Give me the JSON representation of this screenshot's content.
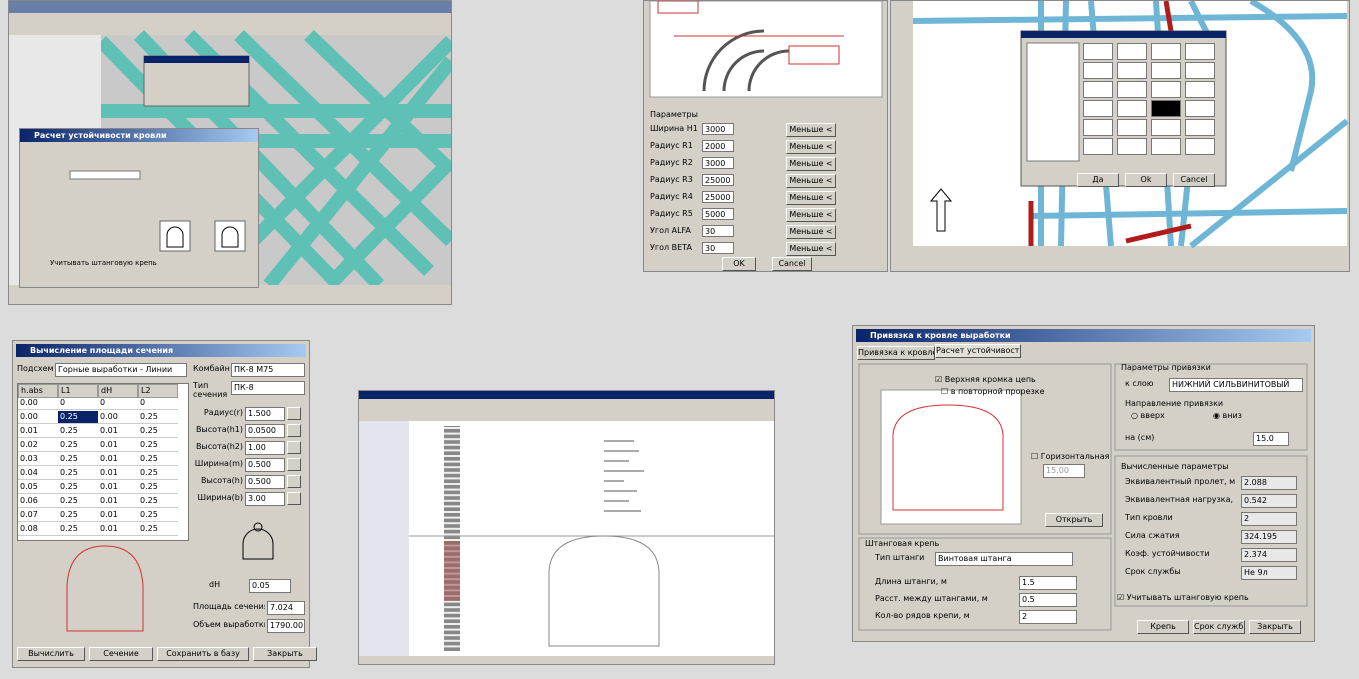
{
  "cad_left": {
    "dialog_title": "Расчет устойчивости кровли",
    "checkbox": "Учитывать штанговую крепь"
  },
  "params_dialog": {
    "group": "Параметры",
    "rows": [
      {
        "label": "Ширина H1",
        "value": "3000"
      },
      {
        "label": "Радиус R1",
        "value": "2000"
      },
      {
        "label": "Радиус R2",
        "value": "3000"
      },
      {
        "label": "Радиус R3",
        "value": "25000"
      },
      {
        "label": "Радиус R4",
        "value": "25000"
      },
      {
        "label": "Радиус R5",
        "value": "5000"
      },
      {
        "label": "Угол ALFA",
        "value": "30"
      },
      {
        "label": "Угол BETA",
        "value": "30"
      }
    ],
    "button": "Меньше <",
    "ok": "OK",
    "cancel": "Cancel"
  },
  "cad_right": {
    "buttons": [
      "Да",
      "Ok",
      "Cancel"
    ]
  },
  "section_calc": {
    "title": "Вычисление площади сечения",
    "subsystem_label": "Подсхем",
    "subsystem": "Горные выработки - Линии",
    "columns": [
      "h.abs",
      "L1",
      "dH",
      "L2"
    ],
    "rows": [
      [
        "0.00",
        "0",
        "0",
        "0"
      ],
      [
        "0.00",
        "0.25",
        "0.00",
        "0.25"
      ],
      [
        "0.01",
        "0.25",
        "0.01",
        "0.25"
      ],
      [
        "0.02",
        "0.25",
        "0.01",
        "0.25"
      ],
      [
        "0.03",
        "0.25",
        "0.01",
        "0.25"
      ],
      [
        "0.04",
        "0.25",
        "0.01",
        "0.25"
      ],
      [
        "0.05",
        "0.25",
        "0.01",
        "0.25"
      ],
      [
        "0.06",
        "0.25",
        "0.01",
        "0.25"
      ],
      [
        "0.07",
        "0.25",
        "0.01",
        "0.25"
      ],
      [
        "0.08",
        "0.25",
        "0.01",
        "0.25"
      ]
    ],
    "combine_label": "Комбайн",
    "combine": "ПК-8 М75",
    "type_label": "Тип сечения",
    "type": "ПК-8",
    "fields": [
      {
        "label": "Радиус(r)",
        "value": "1.500"
      },
      {
        "label": "Высота(h1)",
        "value": "0.0500"
      },
      {
        "label": "Высота(h2)",
        "value": "1.00"
      },
      {
        "label": "Ширина(m)",
        "value": "0.500"
      },
      {
        "label": "Высота(h)",
        "value": "0.500"
      },
      {
        "label": "Ширина(b)",
        "value": "3.00"
      }
    ],
    "dh_label": "dH",
    "dh": "0.05",
    "area_label": "Площадь сечения",
    "area": "7.024",
    "volume_label": "Объем выработки",
    "volume": "1790.00",
    "buttons": [
      "Вычислить",
      "Сечение",
      "Сохранить в базу",
      "Закрыть"
    ]
  },
  "roof_dialog": {
    "title": "Привязка к кровле выработки",
    "tabs": [
      "Привязка к кровле",
      "Расчет устойчивости"
    ],
    "check_top": "Верхняя кромка цепь",
    "check_repeat": "в повторной прорезке",
    "horizontal": "Горизонтальная",
    "horizontal_value": "15.00",
    "open": "Открыть",
    "bolt_group": "Штанговая крепь",
    "bolt_type_label": "Тип штанги",
    "bolt_type": "Винтовая штанга",
    "bolt_fields": [
      {
        "label": "Длина штанги, м",
        "value": "1.5"
      },
      {
        "label": "Расст. между штангами, м",
        "value": "0.5"
      },
      {
        "label": "Кол-во рядов крепи, м",
        "value": "2"
      }
    ],
    "bind_group": "Параметры привязки",
    "layer_label": "к слою",
    "layer": "НИЖНИЙ СИЛЬВИНИТОВЫЙ",
    "direction_group": "Направление привязки",
    "up": "вверх",
    "down": "вниз",
    "offset_label": "на (см)",
    "offset": "15.0",
    "calc_group": "Вычисленные параметры",
    "calc": [
      {
        "label": "Эквивалентный пролет, м",
        "value": "2.088"
      },
      {
        "label": "Эквивалентная нагрузка, м",
        "value": "0.542"
      },
      {
        "label": "Тип кровли",
        "value": "2"
      },
      {
        "label": "Сила сжатия",
        "value": "324.195"
      },
      {
        "label": "Коэф. устойчивости",
        "value": "2.374"
      },
      {
        "label": "Срок службы",
        "value": "Не 9л"
      }
    ],
    "use_bolts": "Учитывать штанговую крепь",
    "buttons": [
      "Крепь",
      "Срок службы",
      "Закрыть"
    ]
  }
}
